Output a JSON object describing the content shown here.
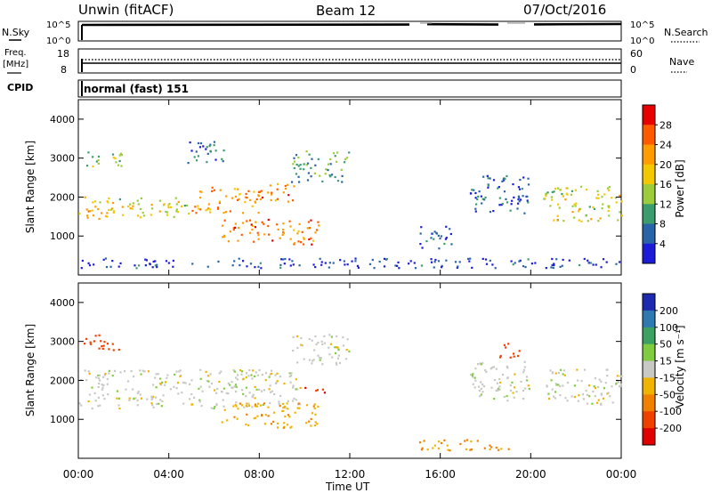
{
  "header": {
    "title": "Unwin (fitACF)",
    "beam": "Beam 12",
    "date": "07/Oct/2016"
  },
  "panels": {
    "sky": {
      "left_label": "N.Sky",
      "right_label": "N.Search",
      "left_ticks": [
        "10^5",
        "10^0"
      ],
      "right_ticks": [
        "10^5",
        "10^0"
      ]
    },
    "freq": {
      "left_label_1": "Freq.",
      "left_label_2": "[MHz]",
      "left_ticks": [
        "18",
        "8"
      ],
      "right_label": "Nave",
      "right_ticks": [
        "60",
        "0"
      ]
    },
    "cpid": {
      "label": "CPID",
      "value": "normal (fast) 151"
    },
    "power": {
      "ylabel": "Slant Range [km]",
      "cbar_label": "Power [dB]",
      "cbar_ticks": [
        "28",
        "24",
        "20",
        "16",
        "12",
        "8",
        "4"
      ],
      "cbar_colors": [
        "#e80000",
        "#ff5a00",
        "#ff9c00",
        "#f4c800",
        "#9ccc3c",
        "#3c9c6c",
        "#2a64a8",
        "#1c1cd8"
      ]
    },
    "velocity": {
      "ylabel": "Slant Range [km]",
      "cbar_label": "Velocity [m s⁻¹]",
      "cbar_ticks": [
        "200",
        "100",
        "50",
        "15",
        "-15",
        "-50",
        "-100",
        "-200"
      ],
      "cbar_colors": [
        "#1c2ab0",
        "#2e7ab0",
        "#3ca060",
        "#80cc40",
        "#c8c8c4",
        "#f0b400",
        "#f08000",
        "#f04000",
        "#e00000"
      ]
    }
  },
  "chart_data": {
    "type": "heatmap",
    "xlabel": "Time UT",
    "x_ticks": [
      "00:00",
      "04:00",
      "08:00",
      "12:00",
      "16:00",
      "20:00",
      "00:00"
    ],
    "xlim_hours": [
      0,
      24
    ],
    "ylim_km": [
      0,
      4500
    ],
    "y_ticks": [
      1000,
      2000,
      3000,
      4000
    ],
    "power_regions": [
      {
        "t0": 0.0,
        "t1": 1.5,
        "r0": 1400,
        "r1": 2100,
        "level": 22
      },
      {
        "t0": 1.5,
        "t1": 5.0,
        "r0": 1500,
        "r1": 2000,
        "level": 18
      },
      {
        "t0": 5.0,
        "t1": 8.0,
        "r0": 1600,
        "r1": 2300,
        "level": 24
      },
      {
        "t0": 8.0,
        "t1": 9.6,
        "r0": 1900,
        "r1": 2400,
        "level": 26
      },
      {
        "t0": 6.3,
        "t1": 10.6,
        "r0": 800,
        "r1": 1450,
        "level": 26
      },
      {
        "t0": 0.2,
        "t1": 2.0,
        "r0": 2800,
        "r1": 3200,
        "level": 14
      },
      {
        "t0": 4.8,
        "t1": 6.5,
        "r0": 2900,
        "r1": 3500,
        "level": 10
      },
      {
        "t0": 9.4,
        "t1": 12.0,
        "r0": 2400,
        "r1": 3200,
        "level": 12
      },
      {
        "t0": 15.0,
        "t1": 16.5,
        "r0": 700,
        "r1": 1300,
        "level": 7
      },
      {
        "t0": 17.3,
        "t1": 20.0,
        "r0": 1600,
        "r1": 2600,
        "level": 8
      },
      {
        "t0": 20.5,
        "t1": 24.0,
        "r0": 1400,
        "r1": 2300,
        "level": 18
      },
      {
        "t0": 0.0,
        "t1": 24.0,
        "r0": 200,
        "r1": 450,
        "level": 6
      }
    ],
    "velocity_regions": [
      {
        "t0": 0.0,
        "t1": 9.8,
        "r0": 1300,
        "r1": 2300,
        "vel": 0
      },
      {
        "t0": 6.3,
        "t1": 10.6,
        "r0": 800,
        "r1": 1450,
        "vel": -40
      },
      {
        "t0": 0.2,
        "t1": 2.0,
        "r0": 2800,
        "r1": 3200,
        "vel": -150
      },
      {
        "t0": 9.4,
        "t1": 12.0,
        "r0": 2400,
        "r1": 3200,
        "vel": 0
      },
      {
        "t0": 10.0,
        "t1": 11.0,
        "r0": 1700,
        "r1": 1900,
        "vel": -200
      },
      {
        "t0": 15.0,
        "t1": 19.0,
        "r0": 200,
        "r1": 500,
        "vel": -60
      },
      {
        "t0": 17.3,
        "t1": 20.0,
        "r0": 1500,
        "r1": 2500,
        "vel": 0
      },
      {
        "t0": 18.5,
        "t1": 19.5,
        "r0": 2600,
        "r1": 3000,
        "vel": -180
      },
      {
        "t0": 20.5,
        "t1": 24.0,
        "r0": 1400,
        "r1": 2300,
        "vel": 0
      }
    ]
  }
}
